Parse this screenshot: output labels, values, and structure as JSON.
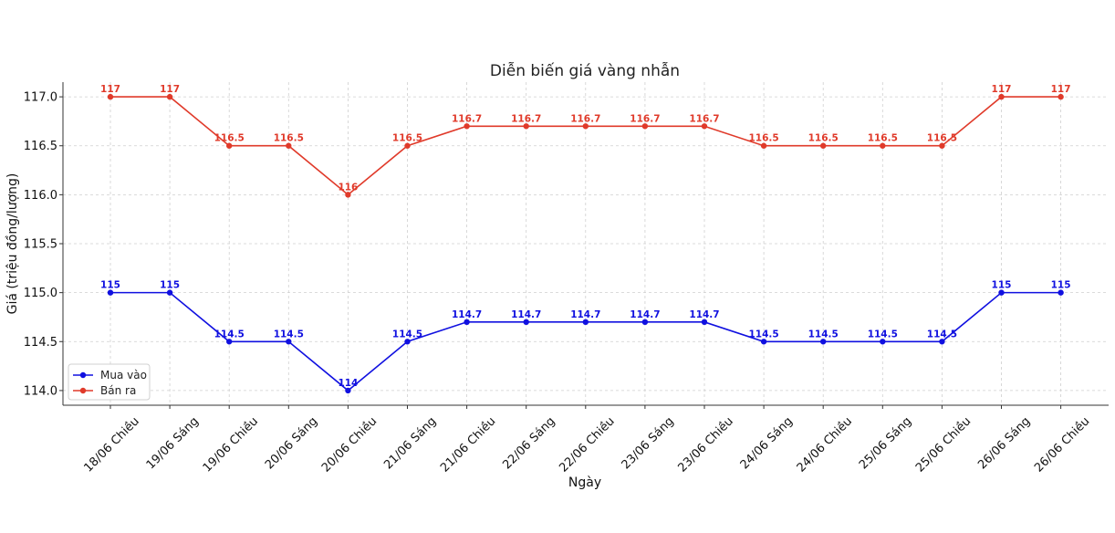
{
  "chart_data": {
    "type": "line",
    "title": "Diễn biến giá vàng nhẫn",
    "xlabel": "Ngày",
    "ylabel": "Giá (triệu đồng/lượng)",
    "categories": [
      "18/06 Chiều",
      "19/06 Sáng",
      "19/06 Chiều",
      "20/06 Sáng",
      "20/06 Chiều",
      "21/06 Sáng",
      "21/06 Chiều",
      "22/06 Sáng",
      "22/06 Chiều",
      "23/06 Sáng",
      "23/06 Chiều",
      "24/06 Sáng",
      "24/06 Chiều",
      "25/06 Sáng",
      "25/06 Chiều",
      "26/06 Sáng",
      "26/06 Chiều"
    ],
    "series": [
      {
        "name": "Mua vào",
        "color": "#1010e0",
        "values": [
          115,
          115,
          114.5,
          114.5,
          114,
          114.5,
          114.7,
          114.7,
          114.7,
          114.7,
          114.7,
          114.5,
          114.5,
          114.5,
          114.5,
          115,
          115
        ],
        "labels": [
          "115",
          "115",
          "114.5",
          "114.5",
          "114",
          "114.5",
          "114.7",
          "114.7",
          "114.7",
          "114.7",
          "114.7",
          "114.5",
          "114.5",
          "114.5",
          "114.5",
          "115",
          "115"
        ]
      },
      {
        "name": "Bán ra",
        "color": "#e03a2a",
        "values": [
          117,
          117,
          116.5,
          116.5,
          116,
          116.5,
          116.7,
          116.7,
          116.7,
          116.7,
          116.7,
          116.5,
          116.5,
          116.5,
          116.5,
          117,
          117
        ],
        "labels": [
          "117",
          "117",
          "116.5",
          "116.5",
          "116",
          "116.5",
          "116.7",
          "116.7",
          "116.7",
          "116.7",
          "116.7",
          "116.5",
          "116.5",
          "116.5",
          "116.5",
          "117",
          "117"
        ]
      }
    ],
    "yticks": [
      "114.0",
      "114.5",
      "115.0",
      "115.5",
      "116.0",
      "116.5",
      "117.0"
    ],
    "ylim": [
      113.85,
      117.15
    ],
    "grid": true,
    "legend_position": "lower-left"
  }
}
